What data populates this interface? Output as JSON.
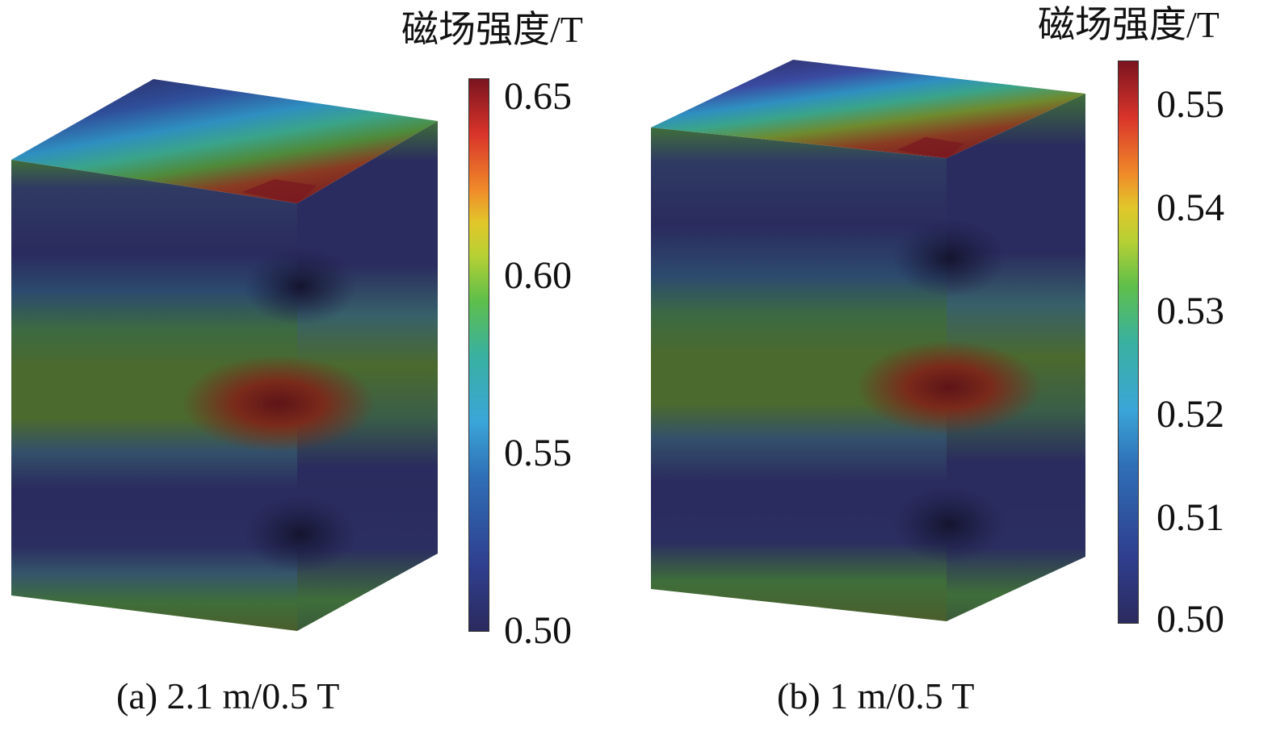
{
  "panels": [
    {
      "id": "a",
      "caption": "(a) 2.1 m/0.5 T",
      "colorbar": {
        "title": "磁场强度/T",
        "ticks": [
          "0.65",
          "0.60",
          "0.55",
          "0.50"
        ],
        "range": [
          0.5,
          0.65
        ]
      }
    },
    {
      "id": "b",
      "caption": "(b) 1 m/0.5 T",
      "colorbar": {
        "title": "磁场强度/T",
        "ticks": [
          "0.55",
          "0.54",
          "0.53",
          "0.52",
          "0.51",
          "0.50"
        ],
        "range": [
          0.5,
          0.555
        ]
      }
    }
  ],
  "colors": {
    "low": "#2b2a5e",
    "mid_low": "#2f6fb6",
    "mid": "#39b1a0",
    "mid_high": "#b7d034",
    "high_orange": "#f08a2a",
    "high_red": "#d9342a",
    "max": "#7a1420",
    "band_green": "#3a6a3c",
    "band_olive": "#4d6a2c"
  }
}
